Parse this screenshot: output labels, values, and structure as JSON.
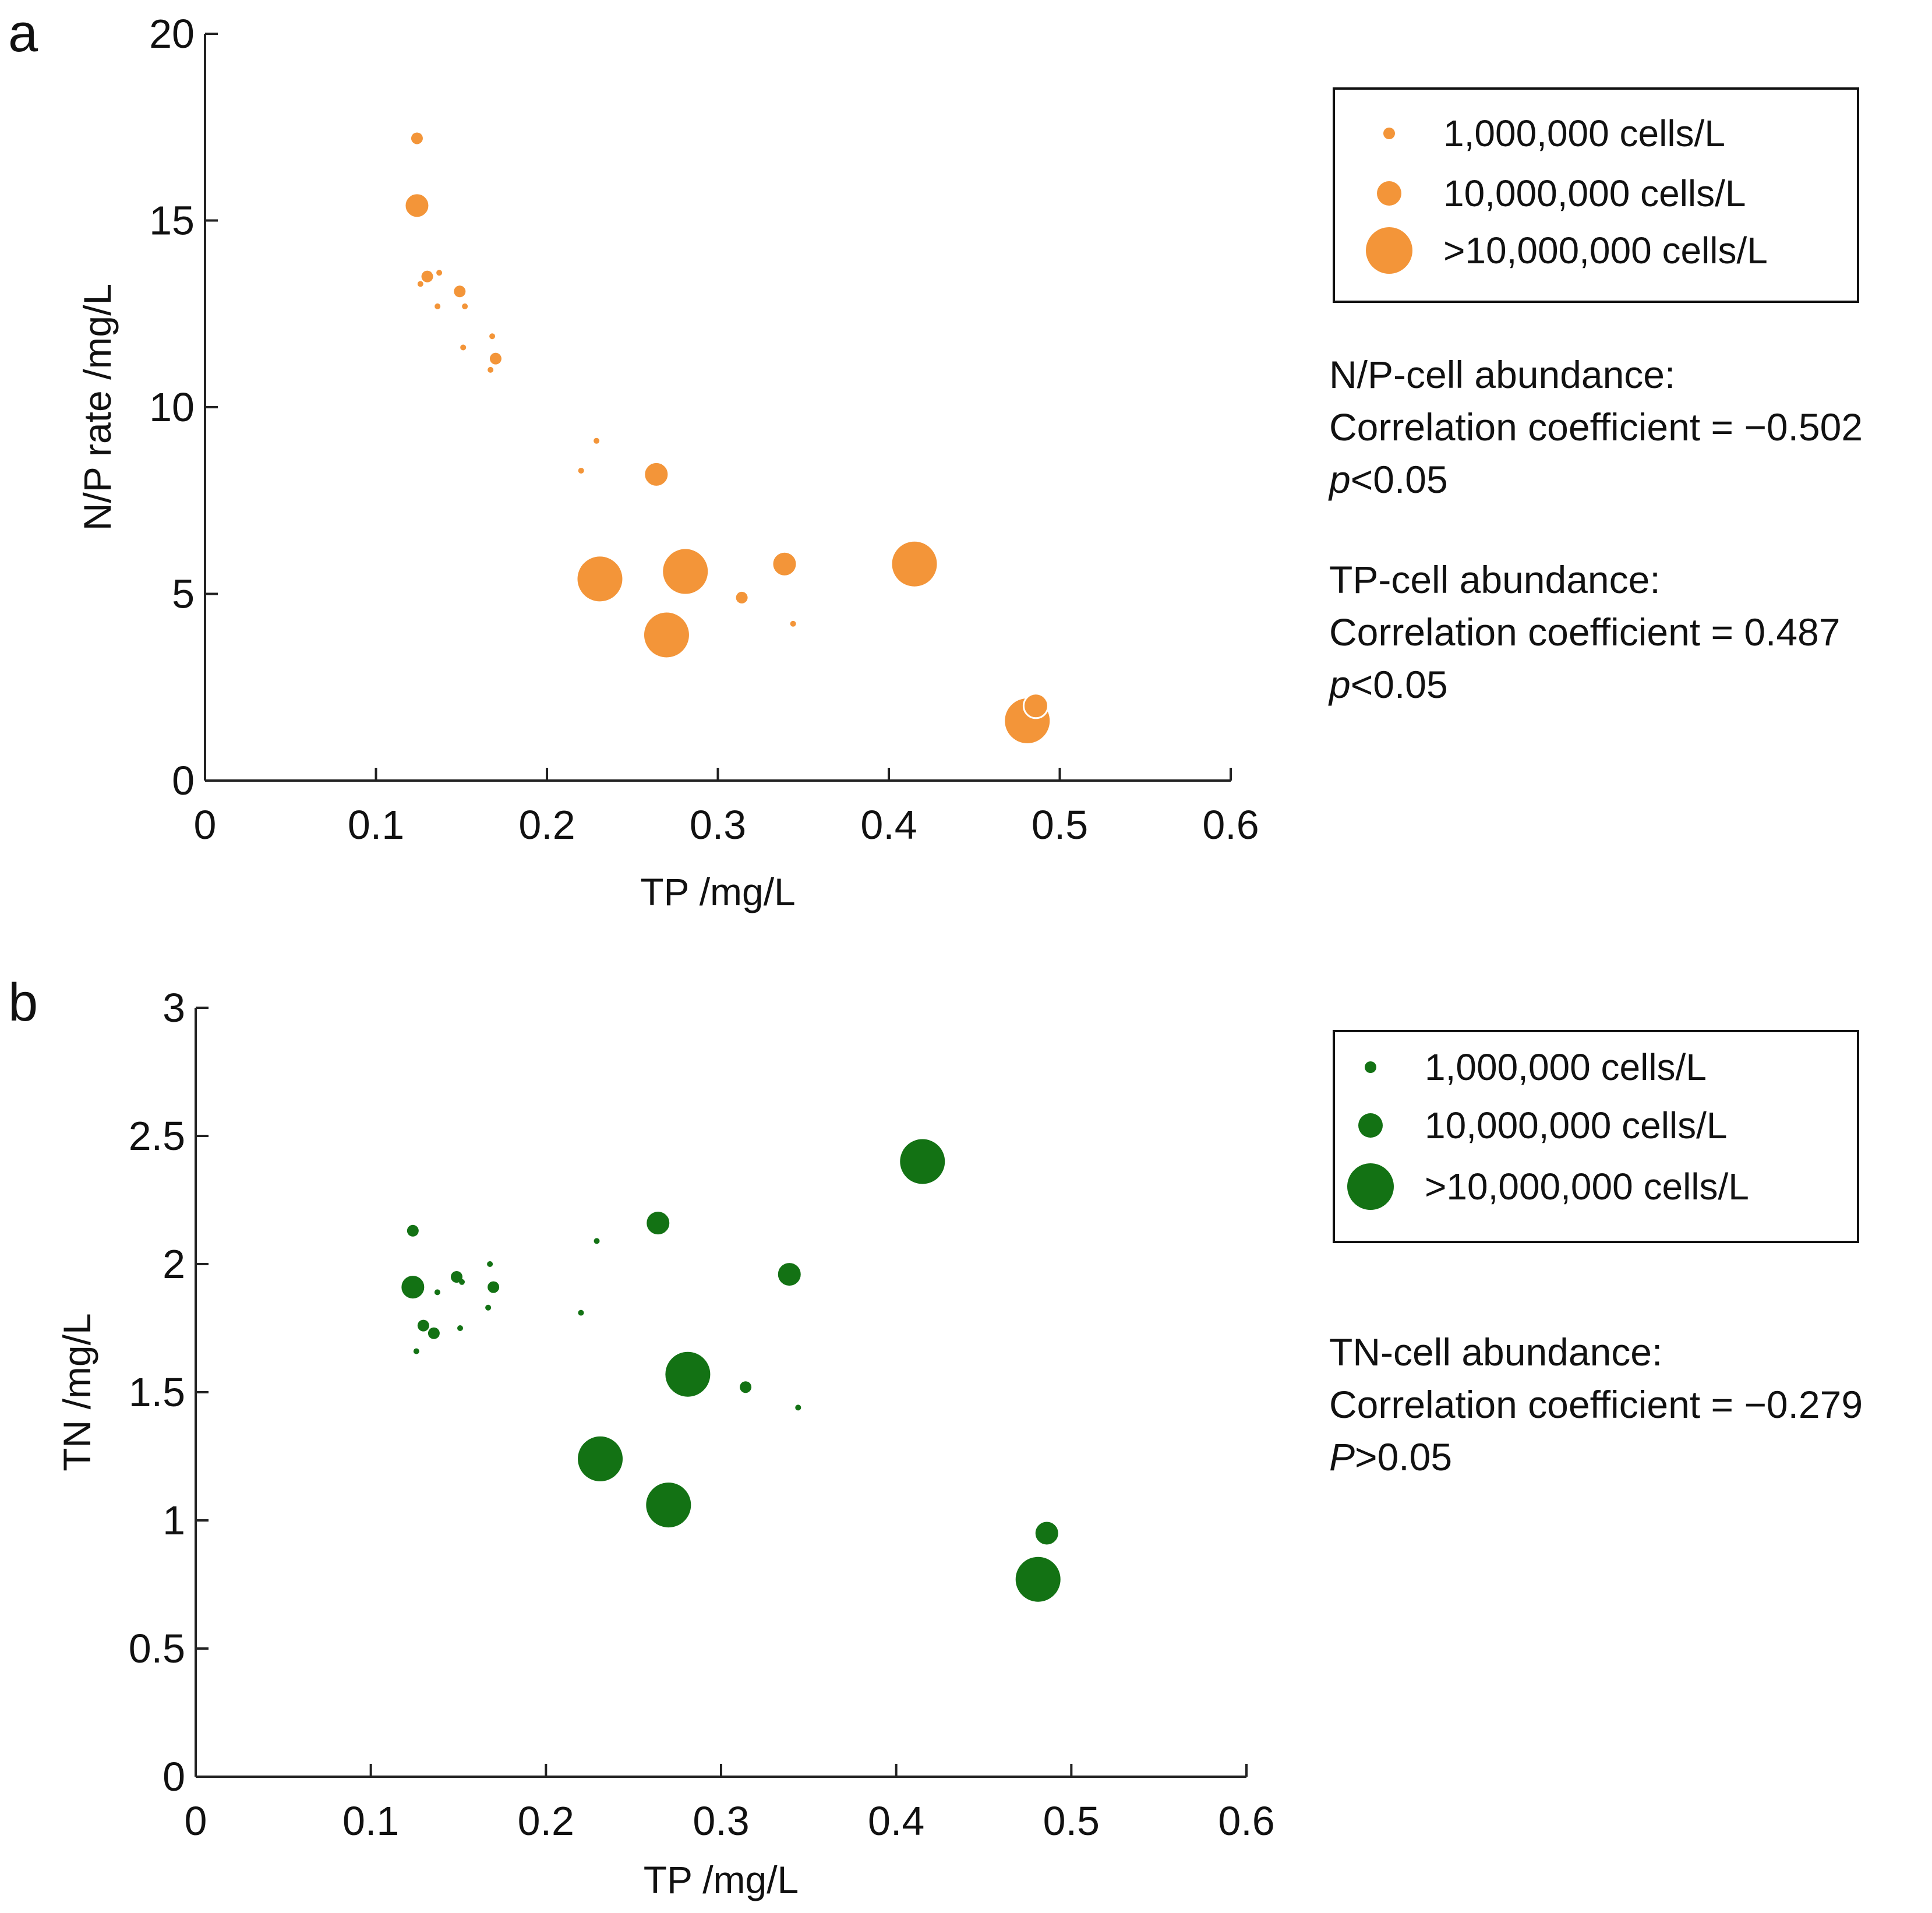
{
  "chart_data": [
    {
      "panel": "a",
      "type": "scatter",
      "xlabel": "TP /mg/L",
      "ylabel": "N/P rate /mg/L",
      "xlim": [
        0,
        0.6
      ],
      "ylim": [
        0,
        20
      ],
      "xticks": [
        "0",
        "0.1",
        "0.2",
        "0.3",
        "0.4",
        "0.5",
        "0.6"
      ],
      "yticks": [
        "0",
        "5",
        "10",
        "15",
        "20"
      ],
      "color": "#f39539",
      "legend": {
        "placement": "top-right",
        "entries": [
          {
            "label": "1,000,000 cells/L",
            "size": "small"
          },
          {
            "label": "10,000,000 cells/L",
            "size": "medium"
          },
          {
            "label": ">10,000,000 cells/L",
            "size": "large"
          }
        ]
      },
      "points": [
        {
          "x": 0.124,
          "y": 17.2,
          "size": "small"
        },
        {
          "x": 0.124,
          "y": 15.4,
          "size": "medium"
        },
        {
          "x": 0.126,
          "y": 13.3,
          "size": "tiny"
        },
        {
          "x": 0.13,
          "y": 13.5,
          "size": "small"
        },
        {
          "x": 0.137,
          "y": 13.6,
          "size": "tiny"
        },
        {
          "x": 0.136,
          "y": 12.7,
          "size": "tiny"
        },
        {
          "x": 0.149,
          "y": 13.1,
          "size": "small"
        },
        {
          "x": 0.152,
          "y": 12.7,
          "size": "tiny"
        },
        {
          "x": 0.151,
          "y": 11.6,
          "size": "tiny"
        },
        {
          "x": 0.168,
          "y": 11.9,
          "size": "tiny"
        },
        {
          "x": 0.17,
          "y": 11.3,
          "size": "small"
        },
        {
          "x": 0.167,
          "y": 11.0,
          "size": "tiny"
        },
        {
          "x": 0.229,
          "y": 9.1,
          "size": "tiny"
        },
        {
          "x": 0.22,
          "y": 8.3,
          "size": "tiny"
        },
        {
          "x": 0.264,
          "y": 8.2,
          "size": "medium"
        },
        {
          "x": 0.231,
          "y": 5.4,
          "size": "large"
        },
        {
          "x": 0.281,
          "y": 5.6,
          "size": "large"
        },
        {
          "x": 0.27,
          "y": 3.9,
          "size": "large"
        },
        {
          "x": 0.339,
          "y": 5.8,
          "size": "medium"
        },
        {
          "x": 0.314,
          "y": 4.9,
          "size": "small"
        },
        {
          "x": 0.344,
          "y": 4.2,
          "size": "tiny"
        },
        {
          "x": 0.415,
          "y": 5.8,
          "size": "large"
        },
        {
          "x": 0.481,
          "y": 1.6,
          "size": "large"
        },
        {
          "x": 0.486,
          "y": 2.0,
          "size": "medium"
        }
      ],
      "annotations": [
        {
          "heading": "N/P-cell abundance:",
          "coef": "Correlation coefficient = −0.502",
          "p_var": "p",
          "p_rest": "<0.05"
        },
        {
          "heading": "TP-cell abundance:",
          "coef": "Correlation coefficient = 0.487",
          "p_var": "p",
          "p_rest": "<0.05"
        }
      ]
    },
    {
      "panel": "b",
      "type": "scatter",
      "xlabel": "TP /mg/L",
      "ylabel": "TN /mg/L",
      "xlim": [
        0,
        0.6
      ],
      "ylim": [
        0,
        3
      ],
      "xticks": [
        "0",
        "0.1",
        "0.2",
        "0.3",
        "0.4",
        "0.5",
        "0.6"
      ],
      "yticks": [
        "0",
        "0.5",
        "1",
        "1.5",
        "2",
        "2.5",
        "3"
      ],
      "color": "#137214",
      "legend": {
        "placement": "top-right",
        "entries": [
          {
            "label": "1,000,000 cells/L",
            "size": "small"
          },
          {
            "label": "10,000,000 cells/L",
            "size": "medium"
          },
          {
            "label": ">10,000,000 cells/L",
            "size": "large"
          }
        ]
      },
      "points": [
        {
          "x": 0.124,
          "y": 2.13,
          "size": "small"
        },
        {
          "x": 0.124,
          "y": 1.91,
          "size": "medium"
        },
        {
          "x": 0.126,
          "y": 1.66,
          "size": "tiny"
        },
        {
          "x": 0.13,
          "y": 1.76,
          "size": "small"
        },
        {
          "x": 0.136,
          "y": 1.73,
          "size": "small"
        },
        {
          "x": 0.138,
          "y": 1.89,
          "size": "tiny"
        },
        {
          "x": 0.149,
          "y": 1.95,
          "size": "small"
        },
        {
          "x": 0.152,
          "y": 1.93,
          "size": "tiny"
        },
        {
          "x": 0.151,
          "y": 1.75,
          "size": "tiny"
        },
        {
          "x": 0.168,
          "y": 2.0,
          "size": "tiny"
        },
        {
          "x": 0.17,
          "y": 1.91,
          "size": "small"
        },
        {
          "x": 0.167,
          "y": 1.83,
          "size": "tiny"
        },
        {
          "x": 0.229,
          "y": 2.09,
          "size": "tiny"
        },
        {
          "x": 0.22,
          "y": 1.81,
          "size": "tiny"
        },
        {
          "x": 0.264,
          "y": 2.16,
          "size": "medium"
        },
        {
          "x": 0.231,
          "y": 1.24,
          "size": "large"
        },
        {
          "x": 0.281,
          "y": 1.57,
          "size": "large"
        },
        {
          "x": 0.27,
          "y": 1.06,
          "size": "large"
        },
        {
          "x": 0.339,
          "y": 1.96,
          "size": "medium"
        },
        {
          "x": 0.314,
          "y": 1.52,
          "size": "small"
        },
        {
          "x": 0.344,
          "y": 1.44,
          "size": "tiny"
        },
        {
          "x": 0.415,
          "y": 2.4,
          "size": "large"
        },
        {
          "x": 0.481,
          "y": 0.77,
          "size": "large"
        },
        {
          "x": 0.486,
          "y": 0.95,
          "size": "medium"
        }
      ],
      "annotations": [
        {
          "heading": "TN-cell abundance:",
          "coef": "Correlation coefficient = −0.279",
          "p_var": "P",
          "p_rest": ">0.05"
        }
      ]
    }
  ]
}
